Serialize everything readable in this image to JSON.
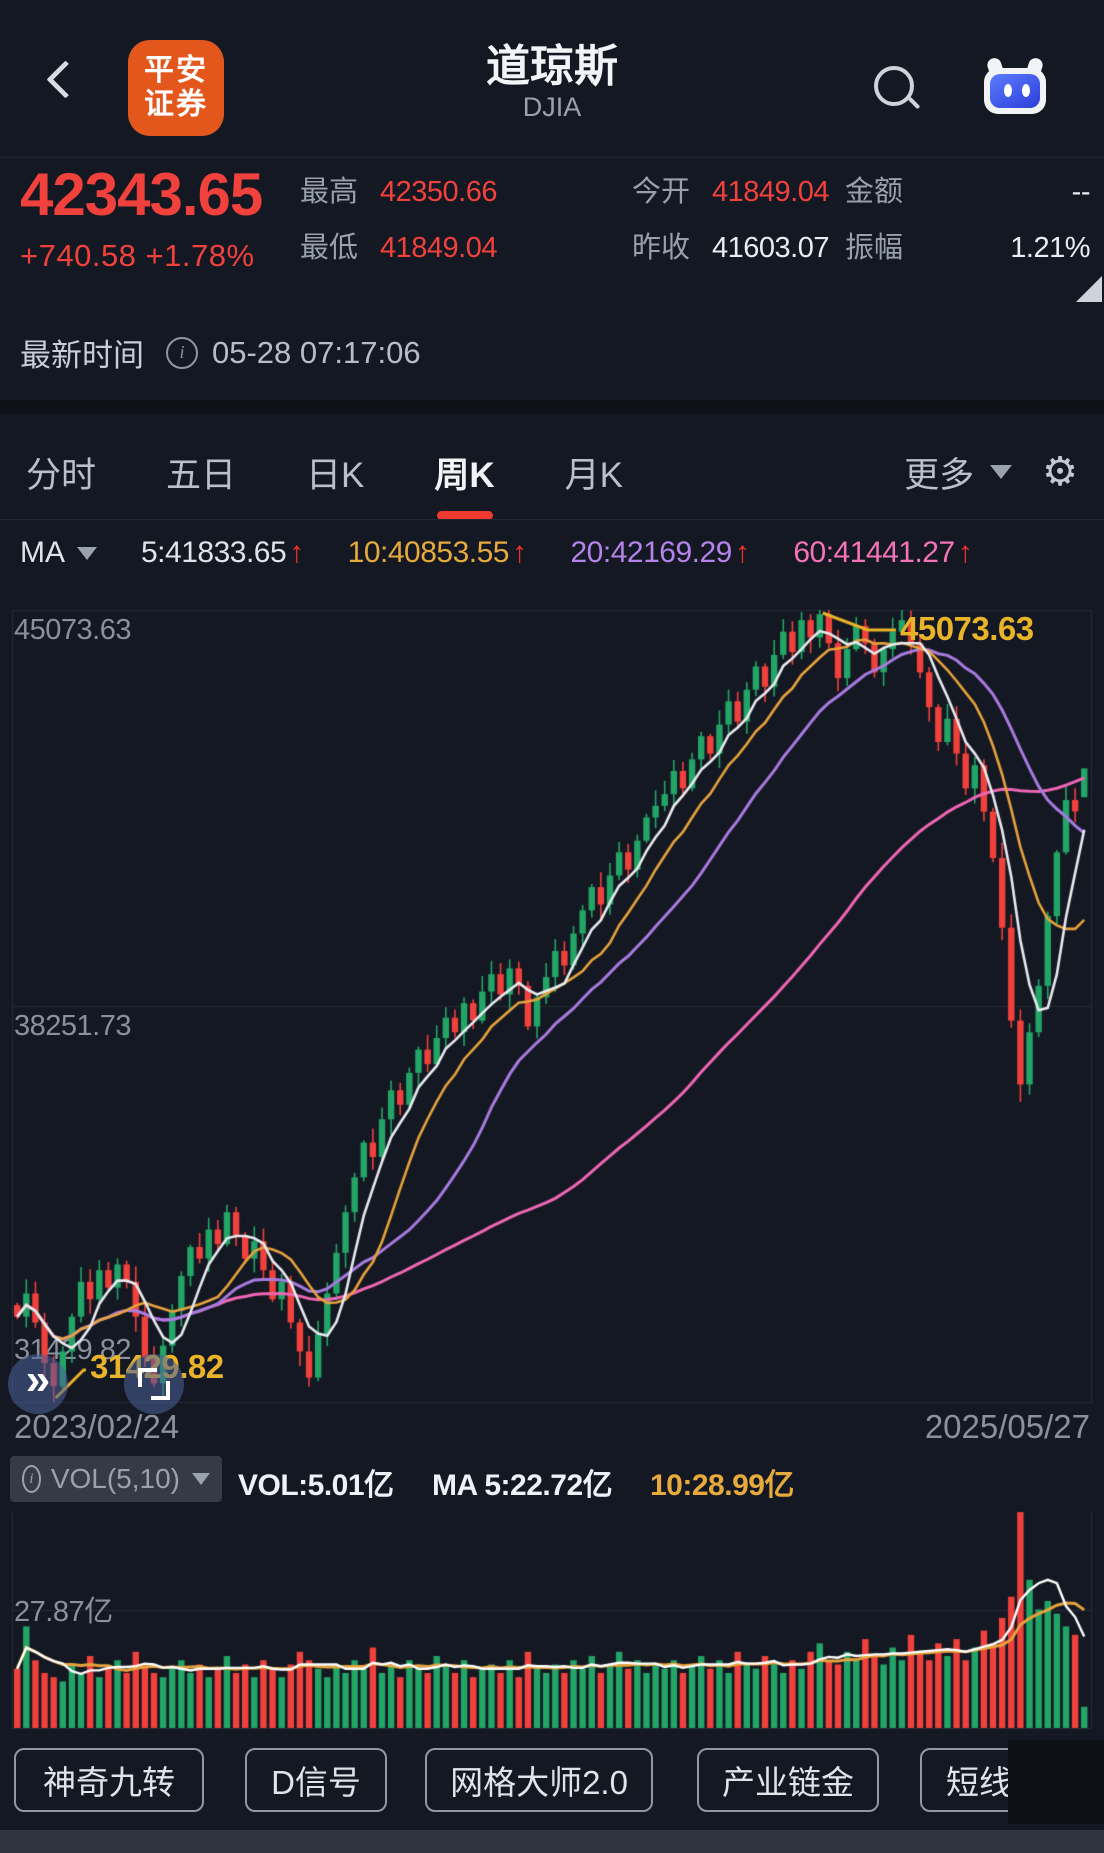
{
  "header": {
    "title": "道琼斯",
    "subtitle": "DJIA",
    "logo_line1": "平安",
    "logo_line2": "证券"
  },
  "quote": {
    "price": "42343.65",
    "change": "+740.58 +1.78%",
    "stats": [
      {
        "label": "最高",
        "value": "42350.66",
        "color": "red",
        "col": 0,
        "row": 0
      },
      {
        "label": "今开",
        "value": "41849.04",
        "color": "red",
        "col": 1,
        "row": 0
      },
      {
        "label": "金额",
        "value": "--",
        "color": "white",
        "col": 2,
        "row": 0
      },
      {
        "label": "最低",
        "value": "41849.04",
        "color": "red",
        "col": 0,
        "row": 1
      },
      {
        "label": "昨收",
        "value": "41603.07",
        "color": "white",
        "col": 1,
        "row": 1
      },
      {
        "label": "振幅",
        "value": "1.21%",
        "color": "white",
        "col": 2,
        "row": 1
      }
    ]
  },
  "time_row": {
    "label": "最新时间",
    "value": "05-28 07:17:06"
  },
  "tabs": {
    "items": [
      {
        "label": "分时",
        "active": false
      },
      {
        "label": "五日",
        "active": false
      },
      {
        "label": "日K",
        "active": false
      },
      {
        "label": "周K",
        "active": true
      },
      {
        "label": "月K",
        "active": false
      }
    ],
    "more_label": "更多"
  },
  "ma_row": {
    "prefix": "MA",
    "items": [
      {
        "label": "5:41833.65",
        "arrow": "↑",
        "color": "#dfe3ea"
      },
      {
        "label": "10:40853.55",
        "arrow": "↑",
        "color": "#e7aa3d"
      },
      {
        "label": "20:42169.29",
        "arrow": "↑",
        "color": "#b583ea"
      },
      {
        "label": "60:41441.27",
        "arrow": "↑",
        "color": "#f573b8"
      }
    ]
  },
  "chart_labels": {
    "y_top": "45073.63",
    "y_mid": "38251.73",
    "y_bottom": "31429.82",
    "callout_max": "45073.63",
    "callout_min": "31429.82",
    "date_start": "2023/02/24",
    "date_end": "2025/05/27"
  },
  "vol_row": {
    "indicator": "VOL(5,10)",
    "vol": "VOL:5.01亿",
    "ma5": "MA 5:22.72亿",
    "ma10": "10:28.99亿",
    "y_label": "27.87亿"
  },
  "footer": {
    "buttons": [
      "神奇九转",
      "D信号",
      "网格大师2.0",
      "产业链金",
      "短线",
      "设置"
    ]
  },
  "chart_data": {
    "type": "candlestick+volume",
    "title": "道琼斯 DJIA 周K",
    "date_start": "2023/02/24",
    "date_end": "2025/05/27",
    "price_axis": {
      "max": 45073.63,
      "mid": 38251.73,
      "min": 31429.82
    },
    "volume_axis": {
      "gridline_value": 27.87,
      "unit": "亿"
    },
    "ma_periods": [
      5,
      10,
      20,
      60
    ],
    "vol_ma_periods": [
      5,
      10
    ],
    "colors": {
      "up": "#22a566",
      "down": "#f0413c",
      "ma5": "#e8eaef",
      "ma10": "#e6a23c",
      "ma20": "#a87ae0",
      "ma60": "#ee66b4",
      "grid": "#242a35",
      "callout": "#e9b32a",
      "vol_ma5": "#ffffff",
      "vol_ma10": "#e6a23c"
    },
    "closes": [
      32900,
      33300,
      32800,
      32100,
      31700,
      32300,
      32900,
      33500,
      33200,
      33700,
      33400,
      33800,
      33500,
      32900,
      32200,
      31750,
      32400,
      33000,
      33600,
      34100,
      33900,
      34400,
      34150,
      34700,
      34300,
      33900,
      34200,
      33700,
      33200,
      33500,
      32800,
      32300,
      31850,
      32600,
      33300,
      34000,
      34700,
      35300,
      35900,
      35650,
      36300,
      36800,
      36550,
      37100,
      37500,
      37250,
      37700,
      38050,
      37800,
      38300,
      38000,
      38500,
      38800,
      38450,
      38900,
      38600,
      37900,
      38400,
      38750,
      39200,
      38950,
      39500,
      39900,
      40300,
      40000,
      40500,
      40900,
      40600,
      41100,
      41500,
      41700,
      41900,
      42300,
      42000,
      42500,
      42900,
      42600,
      43100,
      43500,
      43150,
      43700,
      44100,
      43750,
      44300,
      44700,
      44350,
      44900,
      44600,
      45000,
      44500,
      43900,
      44400,
      44800,
      44500,
      44000,
      44400,
      44700,
      44900,
      44500,
      44000,
      43400,
      42800,
      43200,
      42600,
      42000,
      42400,
      41600,
      40800,
      39600,
      38000,
      36900,
      37800,
      38600,
      39800,
      40900,
      41800,
      41603.07,
      42343.65
    ],
    "volumes": [
      14,
      24,
      16,
      13,
      12,
      11,
      15,
      13,
      17,
      12,
      14,
      16,
      13,
      18,
      15,
      13,
      12,
      14,
      16,
      13,
      15,
      12,
      14,
      17,
      13,
      15,
      12,
      16,
      14,
      12,
      15,
      18,
      16,
      14,
      12,
      15,
      13,
      16,
      14,
      19,
      13,
      15,
      12,
      16,
      14,
      13,
      17,
      15,
      13,
      16,
      12,
      14,
      15,
      13,
      16,
      12,
      18,
      14,
      13,
      15,
      13,
      16,
      14,
      17,
      13,
      15,
      18,
      14,
      16,
      13,
      15,
      14,
      16,
      13,
      15,
      17,
      14,
      16,
      13,
      18,
      15,
      14,
      17,
      15,
      13,
      16,
      14,
      18,
      20,
      16,
      15,
      18,
      16,
      21,
      17,
      15,
      19,
      16,
      22,
      18,
      16,
      20,
      17,
      21,
      16,
      19,
      23,
      20,
      26,
      31,
      51,
      35,
      28,
      30,
      27,
      24,
      22,
      5.01
    ],
    "overrides": {
      "first_open": 33100,
      "min_low": {
        "index": 4,
        "low": 31429.82
      },
      "max_high": {
        "index": 88,
        "high": 45073.63
      },
      "crash_low": {
        "index": 110,
        "low": 36600
      },
      "last": {
        "open": 41849.04,
        "high": 42350.66,
        "low": 41849.04,
        "close": 42343.65
      }
    }
  }
}
